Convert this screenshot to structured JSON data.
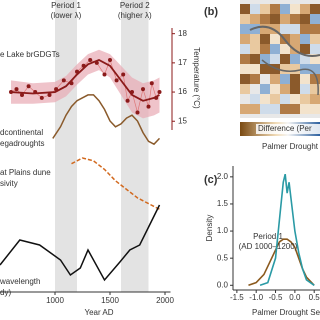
{
  "chart_data": [
    {
      "type": "line",
      "x_label": "Year AD",
      "y2_label": "Temperature (°C)",
      "xlim": [
        500,
        2050
      ],
      "xticks": [
        1000,
        1500,
        2000
      ],
      "y2lim": [
        14.7,
        18.4
      ],
      "y2ticks": [
        15,
        16,
        17,
        18
      ],
      "shaded_periods": [
        {
          "name": "Period 1",
          "note": "(lower λ)",
          "xlim": [
            1000,
            1200
          ]
        },
        {
          "name": "Period 2",
          "note": "(higher λ)",
          "xlim": [
            1600,
            1850
          ]
        }
      ],
      "series": [
        {
          "name": "e Lake brGDGTs",
          "axis": "y2",
          "color": "#8b1a1a",
          "x": [
            600,
            650,
            700,
            760,
            820,
            880,
            950,
            1010,
            1080,
            1150,
            1200,
            1260,
            1320,
            1380,
            1450,
            1500,
            1560,
            1620,
            1660,
            1700,
            1750,
            1800,
            1850,
            1880,
            1920,
            1950
          ],
          "values": [
            16.0,
            16.1,
            15.9,
            16.2,
            16.0,
            15.8,
            15.9,
            16.1,
            16.4,
            16.3,
            16.7,
            16.9,
            17.1,
            17.0,
            16.6,
            17.1,
            16.4,
            16.6,
            15.7,
            16.0,
            15.3,
            16.1,
            15.5,
            16.3,
            15.8,
            16.0
          ],
          "smooth_x": [
            600,
            800,
            1000,
            1100,
            1200,
            1300,
            1400,
            1500,
            1600,
            1700,
            1800,
            1900,
            1950
          ],
          "smooth": [
            16.0,
            15.95,
            16.0,
            16.2,
            16.6,
            16.95,
            17.1,
            16.9,
            16.4,
            15.9,
            15.7,
            15.8,
            15.9
          ],
          "band_lower": [
            15.6,
            15.6,
            15.65,
            15.85,
            16.25,
            16.6,
            16.75,
            16.5,
            15.9,
            15.3,
            15.1,
            15.2,
            15.3
          ],
          "band_upper": [
            16.4,
            16.3,
            16.35,
            16.55,
            16.95,
            17.3,
            17.45,
            17.3,
            16.9,
            16.5,
            16.3,
            16.4,
            16.5
          ]
        },
        {
          "label_lines": [
            "dcontinental",
            "egadroughts"
          ],
          "color": "#8a5a2b",
          "ylim": [
            0,
            1
          ],
          "x": [
            980,
            1050,
            1100,
            1150,
            1200,
            1250,
            1300,
            1350,
            1400,
            1450,
            1500,
            1550,
            1600,
            1650,
            1700,
            1750,
            1800,
            1850,
            1900,
            1950
          ],
          "values": [
            0.2,
            0.4,
            0.6,
            0.75,
            0.85,
            0.9,
            0.95,
            0.95,
            0.85,
            0.7,
            0.5,
            0.4,
            0.45,
            0.55,
            0.6,
            0.5,
            0.3,
            0.15,
            0.1,
            0.2
          ]
        },
        {
          "label_lines": [
            "at Plains dune",
            "sivity"
          ],
          "color": "#d2691e",
          "dash": true,
          "ylim": [
            0,
            1
          ],
          "x": [
            1150,
            1250,
            1350,
            1450,
            1550,
            1650,
            1750,
            1850,
            1950
          ],
          "values": [
            0.9,
            1.0,
            0.95,
            0.8,
            0.6,
            0.45,
            0.3,
            0.2,
            0.1
          ]
        },
        {
          "label_lines": [
            "wavelength",
            "dy)"
          ],
          "color": "#111111",
          "ylim": [
            0,
            1
          ],
          "x": [
            500,
            680,
            860,
            1050,
            1140,
            1230,
            1300,
            1450,
            1590,
            1680,
            1770,
            1860,
            1950
          ],
          "values": [
            0.35,
            0.6,
            0.55,
            0.4,
            0.25,
            0.32,
            0.5,
            0.2,
            0.38,
            0.5,
            0.55,
            0.75,
            0.95
          ]
        }
      ]
    },
    {
      "type": "line",
      "panel_label": "(c)",
      "x_label": "Palmer Drought Seve",
      "y_label": "Density",
      "xlim": [
        -1.6,
        0.65
      ],
      "xticks": [
        -1.5,
        {
          "value": -1,
          "label": "-1.0"
        },
        -0.5,
        {
          "value": 0,
          "label": "0.0"
        },
        0.5
      ],
      "ylim": [
        -0.05,
        2.2
      ],
      "yticks": [
        {
          "value": 0,
          "label": "0.0"
        },
        0.5,
        {
          "value": 1,
          "label": "1.0"
        },
        1.5,
        {
          "value": 2,
          "label": "2.0"
        }
      ],
      "series": [
        {
          "name": "Period 1",
          "note": "(AD 1000–1200)",
          "color": "#8b5a1e",
          "x": [
            -1.2,
            -1.0,
            -0.8,
            -0.6,
            -0.4,
            -0.3,
            -0.2,
            -0.1,
            0,
            0.1,
            0.2,
            0.3,
            0.5
          ],
          "values": [
            0,
            0.05,
            0.2,
            0.5,
            0.8,
            0.85,
            0.85,
            0.8,
            0.7,
            0.5,
            0.3,
            0.15,
            0
          ]
        },
        {
          "color": "#2a9aa5",
          "x": [
            -0.9,
            -0.7,
            -0.5,
            -0.4,
            -0.3,
            -0.25,
            -0.2,
            -0.15,
            -0.1,
            0,
            0.1,
            0.2,
            0.3,
            0.5
          ],
          "values": [
            0,
            0.05,
            0.5,
            1.2,
            1.9,
            2.05,
            1.7,
            1.9,
            1.6,
            1.0,
            0.6,
            0.3,
            0.1,
            0
          ]
        }
      ]
    }
  ],
  "map": {
    "panel_label": "(b)",
    "legend_title": "Difference (Per",
    "legend_axis": "Palmer Drought S"
  }
}
